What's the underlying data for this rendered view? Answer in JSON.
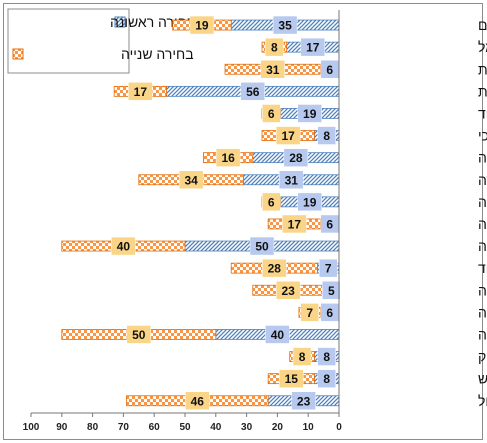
{
  "chart_data": {
    "type": "bar",
    "orientation": "horizontal",
    "x_axis_direction": "reversed",
    "categories": [
      "הנדסת חומרים",
      "הנדסת חשמל",
      "הנדסת מכונות",
      "הפרעות בתקשורת",
      "חינוך מיוחד",
      "ייעוץ חינוכי",
      "כלכלה",
      "לקויות למידה",
      "מדעי הסביבה",
      "מתמטיקה",
      "סוציולוגיה",
      "סיעוד",
      "פיזיותרפיה",
      "פילוסופיה",
      "פסיכולוגיה",
      "ריפוי בעיסוק",
      "שירותי אנוש",
      "תעשיה וניהול"
    ],
    "series": [
      {
        "name": "בחירה ראשונה",
        "color": "#4f81bd",
        "pattern": "diagonal-blue",
        "values": [
          35,
          17,
          6,
          56,
          19,
          8,
          28,
          31,
          19,
          6,
          50,
          7,
          5,
          6,
          40,
          8,
          8,
          23
        ]
      },
      {
        "name": "בחירה שנייה",
        "color": "#f79646",
        "pattern": "checker-orange",
        "values": [
          19,
          8,
          31,
          17,
          6,
          17,
          16,
          34,
          6,
          17,
          40,
          28,
          23,
          7,
          50,
          8,
          15,
          46
        ]
      }
    ],
    "stacked": true,
    "xlim": [
      0,
      100
    ],
    "xticks": [
      0,
      10,
      20,
      30,
      40,
      50,
      60,
      70,
      80,
      90,
      100
    ],
    "grid": false,
    "legend_position": "top-left",
    "title": "",
    "xlabel": "",
    "ylabel": ""
  }
}
